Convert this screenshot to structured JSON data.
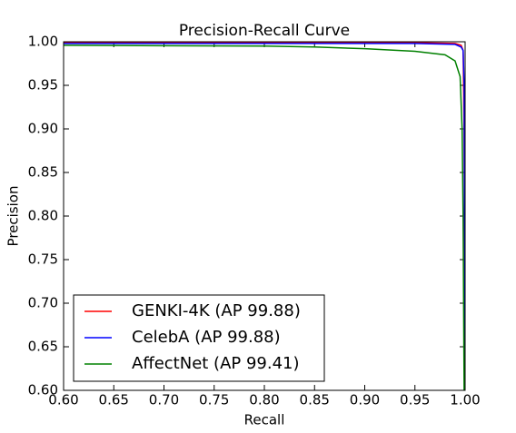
{
  "chart_data": {
    "type": "line",
    "title": "Precision-Recall Curve",
    "x_label": "Recall",
    "y_label": "Precision",
    "xlim": [
      0.6,
      1.0
    ],
    "ylim": [
      0.6,
      1.0
    ],
    "xticks": [
      {
        "value": 0.6,
        "label": "0.60"
      },
      {
        "value": 0.65,
        "label": "0.65"
      },
      {
        "value": 0.7,
        "label": "0.70"
      },
      {
        "value": 0.75,
        "label": "0.75"
      },
      {
        "value": 0.8,
        "label": "0.80"
      },
      {
        "value": 0.85,
        "label": "0.85"
      },
      {
        "value": 0.9,
        "label": "0.90"
      },
      {
        "value": 0.95,
        "label": "0.95"
      },
      {
        "value": 1.0,
        "label": "1.00"
      }
    ],
    "yticks": [
      {
        "value": 0.6,
        "label": "0.60"
      },
      {
        "value": 0.65,
        "label": "0.65"
      },
      {
        "value": 0.7,
        "label": "0.70"
      },
      {
        "value": 0.75,
        "label": "0.75"
      },
      {
        "value": 0.8,
        "label": "0.80"
      },
      {
        "value": 0.85,
        "label": "0.85"
      },
      {
        "value": 0.9,
        "label": "0.90"
      },
      {
        "value": 0.95,
        "label": "0.95"
      },
      {
        "value": 1.0,
        "label": "1.00"
      }
    ],
    "legend": "lower left",
    "series": [
      {
        "name": "GENKI-4K (AP 99.88)",
        "color": "#ff0000",
        "x": [
          0.6,
          0.8,
          0.95,
          0.99,
          0.996,
          0.998,
          0.999,
          1.0
        ],
        "values": [
          0.999,
          0.999,
          0.999,
          0.998,
          0.996,
          0.99,
          0.9,
          0.6
        ]
      },
      {
        "name": "CelebA (AP 99.88)",
        "color": "#0000ff",
        "x": [
          0.6,
          0.8,
          0.9,
          0.95,
          0.99,
          0.996,
          0.998,
          0.999,
          1.0
        ],
        "values": [
          0.998,
          0.998,
          0.998,
          0.998,
          0.997,
          0.994,
          0.99,
          0.95,
          0.6
        ]
      },
      {
        "name": "AffectNet (AP 99.41)",
        "color": "#008000",
        "x": [
          0.6,
          0.7,
          0.8,
          0.85,
          0.9,
          0.95,
          0.98,
          0.99,
          0.995,
          0.997,
          0.998,
          0.999
        ],
        "values": [
          0.996,
          0.9955,
          0.995,
          0.994,
          0.992,
          0.989,
          0.985,
          0.978,
          0.96,
          0.9,
          0.8,
          0.6
        ]
      }
    ]
  }
}
